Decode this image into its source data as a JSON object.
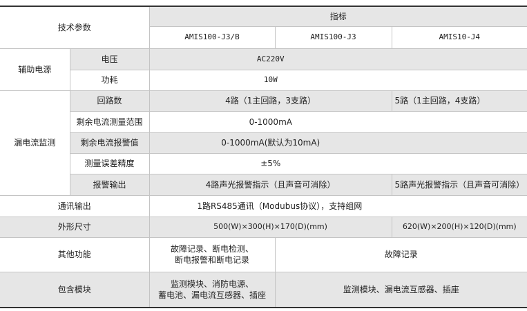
{
  "header": {
    "param_label": "技术参数",
    "indicator_label": "指标",
    "models": [
      "AMIS100-J3/B",
      "AMIS100-J3",
      "AMIS10-J4"
    ]
  },
  "aux_power": {
    "group": "辅助电源",
    "voltage_label": "电压",
    "voltage_value": "AC220V",
    "power_label": "功耗",
    "power_value": "10W"
  },
  "leakage": {
    "group": "漏电流监测",
    "circuits_label": "回路数",
    "circuits_j3": "4路（1主回路，3支路）",
    "circuits_j4": "5路（1主回路，4支路）",
    "range_label": "剩余电流测量范围",
    "range_value": "0-1000mA",
    "alarm_label": "剩余电流报警值",
    "alarm_value": "0-1000mA(默认为10mA)",
    "accuracy_label": "测量误差精度",
    "accuracy_value": "±5%",
    "output_label": "报警输出",
    "output_j3": "4路声光报警指示（且声音可消除）",
    "output_j4": "5路声光报警指示（且声音可消除）"
  },
  "comm": {
    "label": "通讯输出",
    "value": "1路RS485通讯（Modubus协议），支持组网"
  },
  "size": {
    "label": "外形尺寸",
    "j3": "500(W)×300(H)×170(D)(mm)",
    "j4": "620(W)×200(H)×120(D)(mm)"
  },
  "functions": {
    "label": "其他功能",
    "j3b_line1": "故障记录、断电检测、",
    "j3b_line2": "断电报警和断电记录",
    "others": "故障记录"
  },
  "modules": {
    "label": "包含模块",
    "j3b_line1": "监测模块、消防电源、",
    "j3b_line2": "蓄电池、漏电流互感器、插座",
    "others": "监测模块、漏电流互感器、插座"
  }
}
